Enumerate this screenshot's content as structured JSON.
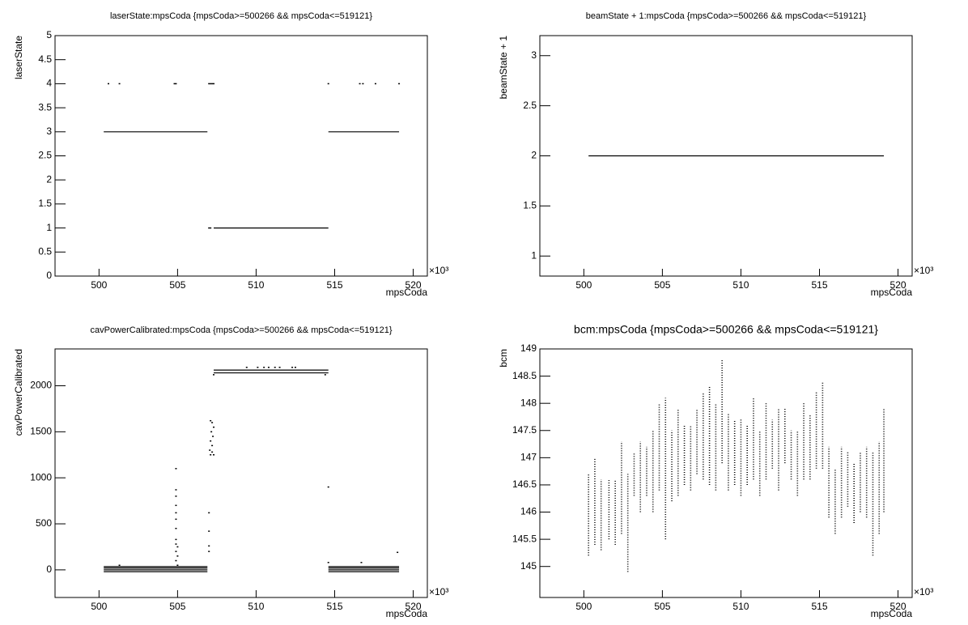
{
  "chart_data": [
    {
      "type": "scatter",
      "title": "laserState:mpsCoda {mpsCoda>=500266 && mpsCoda<=519121}",
      "x_label": "mpsCoda",
      "y_label": "laserState",
      "x_multiplier": "×10³",
      "xlim": [
        497.2,
        520.9
      ],
      "xticks": [
        500,
        505,
        510,
        515,
        520
      ],
      "ylim": [
        0,
        5
      ],
      "yticks": [
        0,
        0.5,
        1,
        1.5,
        2,
        2.5,
        3,
        3.5,
        4,
        4.5,
        5
      ],
      "series": [
        {
          "color": "#000000",
          "style": "line",
          "x": [
            500.3,
            506.9,
            null,
            507.3,
            514.6,
            null,
            514.6,
            519.1
          ],
          "values": [
            3,
            3,
            null,
            1,
            1,
            null,
            3,
            3
          ]
        },
        {
          "color": "#000000",
          "style": "dots",
          "x": [
            500.6,
            501.3,
            504.8,
            504.9,
            507.0,
            507.1,
            507.2,
            507.3,
            514.6,
            516.6,
            516.8,
            517.6,
            519.1,
            507.0,
            507.1
          ],
          "values": [
            4,
            4,
            4,
            4,
            4,
            4,
            4,
            4,
            4,
            4,
            4,
            4,
            4,
            1,
            1
          ]
        }
      ]
    },
    {
      "type": "scatter",
      "title": "beamState + 1:mpsCoda {mpsCoda>=500266 && mpsCoda<=519121}",
      "x_label": "mpsCoda",
      "y_label": "beamState + 1",
      "x_multiplier": "×10³",
      "xlim": [
        497.2,
        520.9
      ],
      "xticks": [
        500,
        505,
        510,
        515,
        520
      ],
      "ylim": [
        0.8,
        3.2
      ],
      "yticks": [
        1,
        1.5,
        2,
        2.5,
        3
      ],
      "series": [
        {
          "color": "#000000",
          "style": "line",
          "x": [
            500.3,
            519.1
          ],
          "values": [
            2,
            2
          ]
        }
      ]
    },
    {
      "type": "scatter",
      "title": "cavPowerCalibrated:mpsCoda {mpsCoda>=500266 && mpsCoda<=519121}",
      "x_label": "mpsCoda",
      "y_label": "cavPowerCalibrated",
      "x_multiplier": "×10³",
      "xlim": [
        497.2,
        520.9
      ],
      "xticks": [
        500,
        505,
        510,
        515,
        520
      ],
      "ylim": [
        -300,
        2400
      ],
      "yticks": [
        0,
        500,
        1000,
        1500,
        2000
      ],
      "series": [
        {
          "color": "#000000",
          "style": "line",
          "x": [
            500.3,
            506.9,
            null,
            500.3,
            506.9,
            null,
            500.3,
            506.9,
            null,
            500.3,
            506.9,
            null,
            514.6,
            519.1,
            null,
            514.6,
            519.1,
            null,
            514.6,
            519.1,
            null,
            514.6,
            519.1,
            null,
            507.3,
            514.6,
            null,
            507.3,
            514.6
          ],
          "values": [
            -20,
            -20,
            null,
            0,
            0,
            null,
            20,
            20,
            null,
            35,
            35,
            null,
            -20,
            -20,
            null,
            0,
            0,
            null,
            20,
            20,
            null,
            35,
            35,
            null,
            2140,
            2140,
            null,
            2170,
            2170
          ]
        },
        {
          "color": "#000000",
          "style": "dots",
          "x": [
            504.9,
            504.9,
            504.9,
            504.9,
            504.9,
            504.9,
            504.9,
            504.9,
            504.9,
            504.9,
            504.9,
            505.0,
            505.0,
            505.0,
            507.0,
            507.0,
            507.0,
            507.0,
            507.05,
            507.1,
            507.1,
            507.15,
            507.2,
            507.2,
            507.25,
            507.3,
            507.3,
            507.1,
            507.2,
            509.4,
            510.1,
            510.5,
            510.8,
            511.2,
            511.5,
            512.3,
            512.5,
            514.6,
            514.6,
            516.7,
            519.0,
            501.3,
            507.3,
            514.4
          ],
          "values": [
            100,
            200,
            280,
            330,
            450,
            550,
            620,
            700,
            800,
            870,
            1100,
            50,
            150,
            250,
            200,
            260,
            420,
            620,
            1300,
            1250,
            1400,
            1500,
            1350,
            1600,
            1450,
            1250,
            1550,
            1620,
            1280,
            2200,
            2200,
            2200,
            2200,
            2200,
            2200,
            2200,
            2200,
            900,
            80,
            80,
            190,
            50,
            2120,
            2120
          ]
        }
      ]
    },
    {
      "type": "scatter",
      "title": "bcm:mpsCoda {mpsCoda>=500266 && mpsCoda<=519121}",
      "x_label": "mpsCoda",
      "y_label": "bcm",
      "x_multiplier": "×10³",
      "xlim": [
        497.2,
        520.9
      ],
      "xticks": [
        500,
        505,
        510,
        515,
        520
      ],
      "ylim": [
        144.43,
        149
      ],
      "yticks": [
        145,
        145.5,
        146,
        146.5,
        147,
        147.5,
        148,
        148.5,
        149
      ],
      "series": [
        {
          "color": "#000000",
          "style": "dotted-line",
          "x": [
            500.3,
            500.3,
            null,
            500.7,
            500.7,
            null,
            501.1,
            501.1,
            null,
            501.6,
            501.6,
            null,
            502.0,
            502.0,
            null,
            502.4,
            502.4,
            null,
            502.8,
            502.8,
            null,
            503.2,
            503.2,
            null,
            503.6,
            503.6,
            null,
            504.0,
            504.0,
            null,
            504.4,
            504.4,
            null,
            504.8,
            504.8,
            null,
            505.2,
            505.2,
            null,
            505.6,
            505.6,
            null,
            506.0,
            506.0,
            null,
            506.4,
            506.4,
            null,
            506.8,
            506.8,
            null,
            507.2,
            507.2,
            null,
            507.6,
            507.6,
            null,
            508.0,
            508.0,
            null,
            508.4,
            508.4,
            null,
            508.8,
            508.8,
            null,
            509.2,
            509.2,
            null,
            509.6,
            509.6,
            null,
            510.0,
            510.0,
            null,
            510.4,
            510.4,
            null,
            510.8,
            510.8,
            null,
            511.2,
            511.2,
            null,
            511.6,
            511.6,
            null,
            512.0,
            512.0,
            null,
            512.4,
            512.4,
            null,
            512.8,
            512.8,
            null,
            513.2,
            513.2,
            null,
            513.6,
            513.6,
            null,
            514.0,
            514.0,
            null,
            514.4,
            514.4,
            null,
            514.8,
            514.8,
            null,
            515.2,
            515.2,
            null,
            515.6,
            515.6,
            null,
            516.0,
            516.0,
            null,
            516.4,
            516.4,
            null,
            516.8,
            516.8,
            null,
            517.2,
            517.2,
            null,
            517.6,
            517.6,
            null,
            518.0,
            518.0,
            null,
            518.4,
            518.4,
            null,
            518.8,
            518.8,
            null,
            519.1,
            519.1
          ],
          "values": [
            145.2,
            146.7,
            null,
            145.4,
            147.0,
            null,
            145.3,
            146.6,
            null,
            145.5,
            146.6,
            null,
            145.4,
            146.6,
            null,
            145.6,
            147.3,
            null,
            144.9,
            146.7,
            null,
            146.3,
            147.1,
            null,
            146.0,
            147.3,
            null,
            146.3,
            147.2,
            null,
            146.0,
            147.5,
            null,
            146.4,
            148.0,
            null,
            145.5,
            148.1,
            null,
            146.2,
            147.5,
            null,
            146.3,
            147.9,
            null,
            146.5,
            147.6,
            null,
            146.4,
            147.6,
            null,
            146.7,
            147.9,
            null,
            146.6,
            148.2,
            null,
            146.5,
            148.3,
            null,
            146.4,
            148.0,
            null,
            146.9,
            148.8,
            null,
            146.4,
            147.8,
            null,
            146.5,
            147.7,
            null,
            146.3,
            147.7,
            null,
            146.5,
            147.6,
            null,
            146.6,
            148.1,
            null,
            146.3,
            147.5,
            null,
            146.6,
            148.0,
            null,
            146.8,
            147.7,
            null,
            146.4,
            147.9,
            null,
            146.9,
            147.9,
            null,
            146.6,
            147.5,
            null,
            146.3,
            147.5,
            null,
            146.6,
            148.0,
            null,
            146.6,
            147.8,
            null,
            146.8,
            148.2,
            null,
            146.8,
            148.4,
            null,
            145.9,
            147.2,
            null,
            145.6,
            146.8,
            null,
            145.9,
            147.2,
            null,
            146.1,
            147.1,
            null,
            145.8,
            146.9,
            null,
            146.0,
            147.1,
            null,
            145.9,
            147.2,
            null,
            145.2,
            147.1,
            null,
            145.6,
            147.3,
            null,
            146.0,
            147.9
          ]
        }
      ]
    }
  ]
}
